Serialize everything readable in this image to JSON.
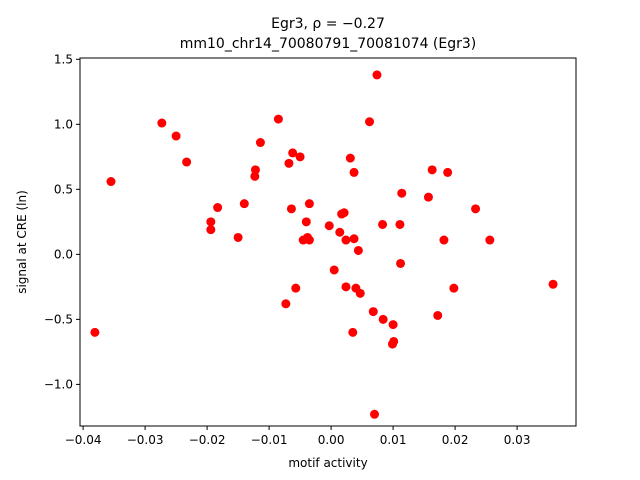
{
  "chart_data": {
    "type": "scatter",
    "title_line1": "Egr3, ρ = −0.27",
    "title_line2": "mm10_chr14_70080791_70081074 (Egr3)",
    "xlabel": "motif activity",
    "ylabel": "signal at CRE (ln)",
    "xlim": [
      -0.0405,
      0.0395
    ],
    "ylim": [
      -1.32,
      1.51
    ],
    "x_ticks": [
      -0.04,
      -0.03,
      -0.02,
      -0.01,
      0.0,
      0.01,
      0.02,
      0.03
    ],
    "x_tick_labels": [
      "−0.04",
      "−0.03",
      "−0.02",
      "−0.01",
      "0.00",
      "0.01",
      "0.02",
      "0.03"
    ],
    "y_ticks": [
      -1.0,
      -0.5,
      0.0,
      0.5,
      1.0,
      1.5
    ],
    "y_tick_labels": [
      "−1.0",
      "−0.5",
      "0.0",
      "0.5",
      "1.0",
      "1.5"
    ],
    "grid": false,
    "marker_color": "#ff0000",
    "points": [
      {
        "x": -0.0381,
        "y": -0.6
      },
      {
        "x": -0.0355,
        "y": 0.56
      },
      {
        "x": -0.0273,
        "y": 1.01
      },
      {
        "x": -0.025,
        "y": 0.91
      },
      {
        "x": -0.0233,
        "y": 0.71
      },
      {
        "x": -0.0194,
        "y": 0.25
      },
      {
        "x": -0.0194,
        "y": 0.19
      },
      {
        "x": -0.0183,
        "y": 0.36
      },
      {
        "x": -0.015,
        "y": 0.13
      },
      {
        "x": -0.014,
        "y": 0.39
      },
      {
        "x": -0.0122,
        "y": 0.65
      },
      {
        "x": -0.0123,
        "y": 0.6
      },
      {
        "x": -0.0114,
        "y": 0.86
      },
      {
        "x": -0.0085,
        "y": 1.04
      },
      {
        "x": -0.0073,
        "y": -0.38
      },
      {
        "x": -0.0068,
        "y": 0.7
      },
      {
        "x": -0.0064,
        "y": 0.35
      },
      {
        "x": -0.0062,
        "y": 0.78
      },
      {
        "x": -0.0057,
        "y": -0.26
      },
      {
        "x": -0.005,
        "y": 0.75
      },
      {
        "x": -0.0045,
        "y": 0.11
      },
      {
        "x": -0.004,
        "y": 0.25
      },
      {
        "x": -0.0038,
        "y": 0.13
      },
      {
        "x": -0.0035,
        "y": 0.39
      },
      {
        "x": -0.0035,
        "y": 0.11
      },
      {
        "x": -0.0003,
        "y": 0.22
      },
      {
        "x": 0.0005,
        "y": -0.12
      },
      {
        "x": 0.0014,
        "y": 0.17
      },
      {
        "x": 0.0017,
        "y": 0.31
      },
      {
        "x": 0.0021,
        "y": 0.32
      },
      {
        "x": 0.0024,
        "y": -0.25
      },
      {
        "x": 0.0024,
        "y": 0.11
      },
      {
        "x": 0.0031,
        "y": 0.74
      },
      {
        "x": 0.0035,
        "y": -0.6
      },
      {
        "x": 0.0037,
        "y": 0.63
      },
      {
        "x": 0.0037,
        "y": 0.12
      },
      {
        "x": 0.004,
        "y": -0.26
      },
      {
        "x": 0.0044,
        "y": 0.03
      },
      {
        "x": 0.0047,
        "y": -0.3
      },
      {
        "x": 0.0062,
        "y": 1.02
      },
      {
        "x": 0.0068,
        "y": -0.44
      },
      {
        "x": 0.007,
        "y": -1.23
      },
      {
        "x": 0.0074,
        "y": 1.38
      },
      {
        "x": 0.0083,
        "y": 0.23
      },
      {
        "x": 0.0084,
        "y": -0.5
      },
      {
        "x": 0.0099,
        "y": -0.69
      },
      {
        "x": 0.01,
        "y": -0.54
      },
      {
        "x": 0.0101,
        "y": -0.67
      },
      {
        "x": 0.0111,
        "y": 0.23
      },
      {
        "x": 0.0112,
        "y": -0.07
      },
      {
        "x": 0.0114,
        "y": 0.47
      },
      {
        "x": 0.0157,
        "y": 0.44
      },
      {
        "x": 0.0163,
        "y": 0.65
      },
      {
        "x": 0.0172,
        "y": -0.47
      },
      {
        "x": 0.0182,
        "y": 0.11
      },
      {
        "x": 0.0188,
        "y": 0.63
      },
      {
        "x": 0.0198,
        "y": -0.26
      },
      {
        "x": 0.0233,
        "y": 0.35
      },
      {
        "x": 0.0256,
        "y": 0.11
      },
      {
        "x": 0.0358,
        "y": -0.23
      }
    ]
  }
}
